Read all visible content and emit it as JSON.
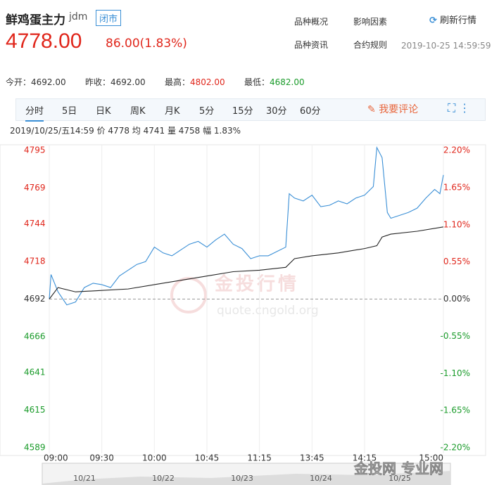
{
  "header": {
    "title": "鲜鸡蛋主力",
    "code": "jdm",
    "status": "闭市",
    "price": "4778.00",
    "change": "86.00(1.83%)",
    "links": [
      "品种概况",
      "影响因素",
      "刷新行情",
      "品种资讯",
      "合约规则"
    ],
    "timestamp": "2019-10-25 14:59:59"
  },
  "stats": [
    {
      "label": "今开：",
      "value": "4692.00"
    },
    {
      "label": "昨收：",
      "value": "4692.00"
    },
    {
      "label": "最高：",
      "value": "4802.00"
    },
    {
      "label": "最低：",
      "value": "4682.00"
    }
  ],
  "tabs": [
    "分时",
    "5日",
    "日K",
    "周K",
    "月K",
    "5分",
    "15分",
    "30分",
    "60分"
  ],
  "comment": "我要评论",
  "info": "2019/10/25/五14:59 价 4778 均 4741 量 4758 幅 1.83%",
  "watermark": [
    "金投行情",
    "quote.cngold.org",
    "金投网 专业网"
  ],
  "chart_data": {
    "type": "line",
    "xlim": [
      0,
      225
    ],
    "ylim": [
      4589,
      4795
    ],
    "y2lim": [
      -2.2,
      2.2
    ],
    "xticks": [
      {
        "value": 0,
        "label": "09:00"
      },
      {
        "value": 30,
        "label": "09:30"
      },
      {
        "value": 60,
        "label": "10:00"
      },
      {
        "value": 90,
        "label": "10:45"
      },
      {
        "value": 120,
        "label": "11:15"
      },
      {
        "value": 150,
        "label": "13:45"
      },
      {
        "value": 180,
        "label": "14:15"
      },
      {
        "value": 225,
        "label": "15:00"
      }
    ],
    "yticks": [
      4795,
      4769,
      4744,
      4718,
      4692,
      4666,
      4641,
      4615,
      4589
    ],
    "y2ticks": [
      {
        "value": 2.2,
        "label": "2.20%"
      },
      {
        "value": 1.65,
        "label": "1.65%"
      },
      {
        "value": 1.1,
        "label": "1.10%"
      },
      {
        "value": 0.55,
        "label": "0.55%"
      },
      {
        "value": 0,
        "label": "0.00%"
      },
      {
        "value": -0.55,
        "label": "-0.55%"
      },
      {
        "value": -1.1,
        "label": "-1.10%"
      },
      {
        "value": -1.65,
        "label": "-1.65%"
      },
      {
        "value": -2.2,
        "label": "-2.20%"
      }
    ],
    "baseline": 4692,
    "series": [
      {
        "color": "#3a8fd6",
        "x": [
          0,
          1,
          5,
          10,
          15,
          20,
          25,
          30,
          35,
          40,
          45,
          50,
          55,
          60,
          65,
          70,
          75,
          80,
          85,
          90,
          95,
          100,
          105,
          110,
          115,
          120,
          125,
          130,
          135,
          137,
          140,
          145,
          150,
          155,
          160,
          165,
          170,
          175,
          180,
          185,
          187,
          190,
          193,
          195,
          200,
          205,
          210,
          215,
          220,
          223,
          225
        ],
        "values": [
          4692,
          4709,
          4697,
          4688,
          4690,
          4700,
          4703,
          4702,
          4700,
          4708,
          4712,
          4716,
          4718,
          4728,
          4724,
          4722,
          4726,
          4730,
          4732,
          4728,
          4733,
          4737,
          4730,
          4727,
          4720,
          4722,
          4722,
          4725,
          4728,
          4765,
          4762,
          4760,
          4764,
          4756,
          4757,
          4760,
          4758,
          4762,
          4764,
          4770,
          4797,
          4790,
          4752,
          4748,
          4750,
          4752,
          4755,
          4762,
          4768,
          4765,
          4778
        ]
      },
      {
        "color": "#222222",
        "x": [
          0,
          5,
          15,
          30,
          45,
          60,
          75,
          90,
          105,
          120,
          135,
          140,
          150,
          165,
          180,
          187,
          190,
          195,
          210,
          225
        ],
        "values": [
          4692,
          4700,
          4697,
          4698,
          4699,
          4702,
          4705,
          4708,
          4711,
          4712,
          4714,
          4720,
          4722,
          4724,
          4727,
          4729,
          4735,
          4737,
          4739,
          4742
        ]
      }
    ],
    "navigator": [
      "10/21",
      "10/22",
      "10/23",
      "10/24",
      "10/25"
    ]
  }
}
